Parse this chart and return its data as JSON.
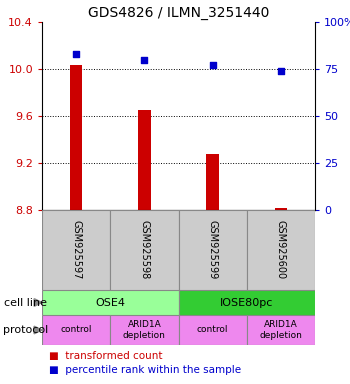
{
  "title": "GDS4826 / ILMN_3251440",
  "samples": [
    "GSM925597",
    "GSM925598",
    "GSM925599",
    "GSM925600"
  ],
  "bar_values": [
    10.03,
    9.65,
    9.28,
    8.82
  ],
  "bar_base": 8.8,
  "percentile_values": [
    83,
    80,
    77,
    74
  ],
  "ylim_left": [
    8.8,
    10.4
  ],
  "ylim_right": [
    0,
    100
  ],
  "yticks_left": [
    8.8,
    9.2,
    9.6,
    10.0,
    10.4
  ],
  "yticks_right": [
    0,
    25,
    50,
    75,
    100
  ],
  "bar_color": "#cc0000",
  "dot_color": "#0000cc",
  "cell_line_labels": [
    "OSE4",
    "IOSE80pc"
  ],
  "cell_line_spans": [
    [
      0,
      2
    ],
    [
      2,
      4
    ]
  ],
  "cell_line_colors": [
    "#99ff99",
    "#33cc33"
  ],
  "protocol_labels": [
    "control",
    "ARID1A\ndepletion",
    "control",
    "ARID1A\ndepletion"
  ],
  "protocol_color": "#ee88ee",
  "sample_box_color": "#cccccc",
  "left_label_color": "#cc0000",
  "right_label_color": "#0000cc",
  "legend_red_label": "transformed count",
  "legend_blue_label": "percentile rank within the sample"
}
